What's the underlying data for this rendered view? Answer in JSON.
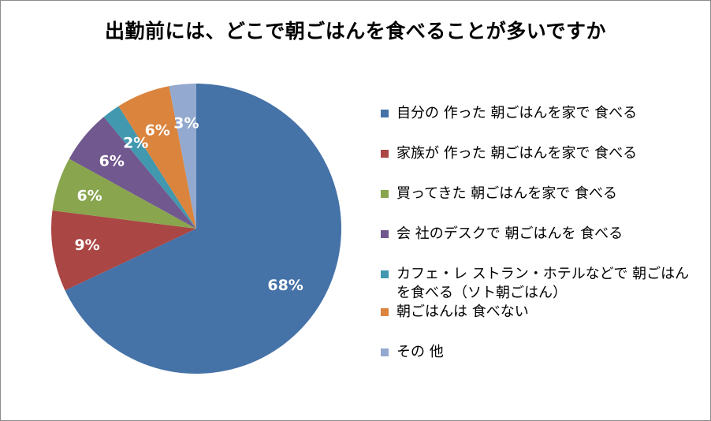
{
  "chart_data": {
    "type": "pie",
    "title": "出勤前には、どこで朝ごはんを食べることが多いですか",
    "labels": [
      "自分の 作った 朝ごはんを家で 食べる",
      "家族が 作った 朝ごはんを家で 食べる",
      "買ってきた 朝ごはんを家で 食べる",
      "会 社のデスクで 朝ごはんを 食べる",
      "カフェ・レ ストラン・ホテルなどで 朝ごはんを食べる（ソト朝ごはん）",
      "朝ごはんは 食べない",
      "その 他"
    ],
    "values": [
      68,
      9,
      6,
      6,
      2,
      6,
      3
    ],
    "data_labels": [
      "68%",
      "9%",
      "6%",
      "6%",
      "2%",
      "6%",
      "3%"
    ],
    "colors": [
      "#4572A7",
      "#AA4643",
      "#89A54E",
      "#71588F",
      "#4198AF",
      "#DB843D",
      "#93A9CF"
    ],
    "legend_position": "right",
    "start": "12 o'clock, clockwise"
  },
  "legend": {
    "items": [
      {
        "label": "自分の 作った 朝ごはんを家で 食べる"
      },
      {
        "label": "家族が 作った 朝ごはんを家で 食べる"
      },
      {
        "label": "買ってきた 朝ごはんを家で 食べる"
      },
      {
        "label": "会 社のデスクで 朝ごはんを 食べる"
      },
      {
        "label": "カフェ・レ ストラン・ホテルなどで 朝ごはんを食べる（ソト朝ごはん）"
      },
      {
        "label": "朝ごはんは 食べない"
      },
      {
        "label": "その 他"
      }
    ]
  }
}
